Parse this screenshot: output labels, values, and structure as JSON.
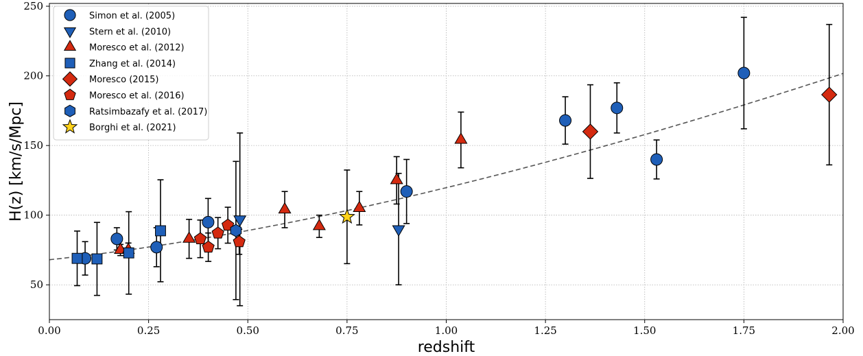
{
  "chart_data": {
    "type": "scatter",
    "title": "",
    "xlabel": "redshift",
    "ylabel": "H(z) [km/s/Mpc]",
    "xlim": [
      0.0,
      2.0
    ],
    "ylim": [
      25,
      252
    ],
    "xticks": [
      0.0,
      0.25,
      0.5,
      0.75,
      1.0,
      1.25,
      1.5,
      1.75,
      2.0
    ],
    "xtick_labels": [
      "0.00",
      "0.25",
      "0.50",
      "0.75",
      "1.00",
      "1.25",
      "1.50",
      "1.75",
      "2.00"
    ],
    "yticks": [
      50,
      100,
      150,
      200,
      250
    ],
    "ytick_labels": [
      "50",
      "100",
      "150",
      "200",
      "250"
    ],
    "grid": true,
    "legend_position": "top-left",
    "model_curve": {
      "style": "dashed",
      "color": "#555555",
      "H0": 68,
      "Om": 0.3
    },
    "series": [
      {
        "name": "Simon et al. (2005)",
        "marker": "circle",
        "color": "#1f5fb8",
        "points": [
          [
            0.09,
            69,
            12
          ],
          [
            0.17,
            83,
            8
          ],
          [
            0.27,
            77,
            14
          ],
          [
            0.4,
            95,
            17
          ],
          [
            0.9,
            117,
            23
          ],
          [
            1.3,
            168,
            17
          ],
          [
            1.43,
            177,
            18
          ],
          [
            1.53,
            140,
            14
          ],
          [
            1.75,
            202,
            40
          ]
        ]
      },
      {
        "name": "Stern et al. (2010)",
        "marker": "triangle-down",
        "color": "#1f5fb8",
        "points": [
          [
            0.48,
            97,
            62
          ],
          [
            0.88,
            90,
            40
          ]
        ]
      },
      {
        "name": "Moresco et al. (2012)",
        "marker": "triangle-up",
        "color": "#d42a10",
        "points": [
          [
            0.179,
            75,
            4
          ],
          [
            0.199,
            75,
            5
          ],
          [
            0.352,
            83,
            14
          ],
          [
            0.593,
            104,
            13
          ],
          [
            0.68,
            92,
            8
          ],
          [
            0.781,
            105,
            12
          ],
          [
            0.875,
            125,
            17
          ],
          [
            1.037,
            154,
            20
          ]
        ]
      },
      {
        "name": "Zhang et al. (2014)",
        "marker": "square",
        "color": "#1f5fb8",
        "points": [
          [
            0.07,
            69,
            19.6
          ],
          [
            0.12,
            68.6,
            26.2
          ],
          [
            0.2,
            72.9,
            29.6
          ],
          [
            0.28,
            88.8,
            36.6
          ]
        ]
      },
      {
        "name": "Moresco (2015)",
        "marker": "diamond",
        "color": "#d42a10",
        "points": [
          [
            1.363,
            160,
            33.6
          ],
          [
            1.965,
            186.5,
            50.4
          ]
        ]
      },
      {
        "name": "Moresco et al. (2016)",
        "marker": "pentagon",
        "color": "#d42a10",
        "points": [
          [
            0.3802,
            83,
            13.5
          ],
          [
            0.4004,
            77,
            10.2
          ],
          [
            0.4247,
            87.1,
            11.2
          ],
          [
            0.4497,
            92.8,
            12.9
          ],
          [
            0.4783,
            80.9,
            9
          ]
        ]
      },
      {
        "name": "Ratsimbazafy et al. (2017)",
        "marker": "hexagon",
        "color": "#1f5fb8",
        "points": [
          [
            0.47,
            89,
            49.6
          ]
        ]
      },
      {
        "name": "Borghi et al. (2021)",
        "marker": "star",
        "color": "#ffd21a",
        "points": [
          [
            0.75,
            98.8,
            33.6
          ]
        ]
      }
    ]
  }
}
